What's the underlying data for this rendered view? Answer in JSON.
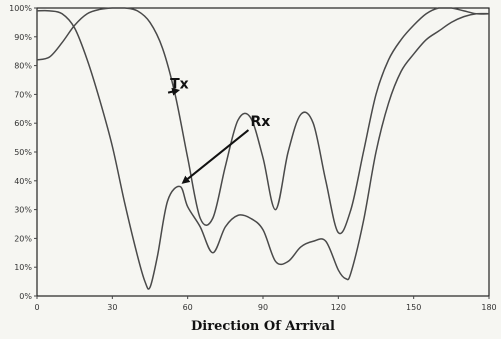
{
  "chart_data": {
    "type": "line",
    "title": "",
    "xlabel": "Direction Of Arrival",
    "ylabel": "",
    "xlim": [
      0,
      180
    ],
    "ylim": [
      0,
      100
    ],
    "grid": false,
    "legend": "none",
    "x_ticks": [
      "0",
      "30",
      "60",
      "90",
      "120",
      "150",
      "180"
    ],
    "y_ticks": [
      "0%",
      "10%",
      "20%",
      "30%",
      "40%",
      "50%",
      "60%",
      "70%",
      "80%",
      "90%",
      "100%"
    ],
    "series": [
      {
        "id": "tx",
        "color": "#4a4a4a",
        "x": [
          0,
          5,
          10,
          15,
          20,
          25,
          30,
          35,
          40,
          45,
          50,
          55,
          60,
          65,
          70,
          75,
          80,
          85,
          90,
          95,
          100,
          105,
          110,
          115,
          120,
          125,
          130,
          135,
          140,
          145,
          150,
          155,
          160,
          165,
          170,
          175,
          180
        ],
        "y": [
          82,
          83,
          88,
          94,
          98,
          99.5,
          100,
          100,
          99,
          95,
          86,
          70,
          48,
          27,
          27,
          45,
          61,
          62,
          48,
          30,
          50,
          63,
          60,
          40,
          22,
          30,
          50,
          70,
          82,
          89,
          94,
          98,
          100,
          100,
          99,
          98,
          98
        ]
      },
      {
        "id": "rx",
        "color": "#4a4a4a",
        "x": [
          0,
          5,
          10,
          15,
          20,
          25,
          30,
          35,
          40,
          43,
          45,
          48,
          52,
          57,
          60,
          65,
          70,
          75,
          80,
          85,
          90,
          95,
          100,
          105,
          110,
          115,
          120,
          123,
          125,
          130,
          135,
          140,
          145,
          150,
          155,
          160,
          165,
          170,
          175,
          180
        ],
        "y": [
          99,
          99,
          98,
          93,
          82,
          68,
          52,
          32,
          14,
          5,
          3,
          14,
          33,
          38,
          31,
          24,
          15,
          24,
          28,
          27,
          23,
          12,
          12,
          17,
          19,
          19,
          9,
          6,
          8,
          26,
          50,
          67,
          78,
          84,
          89,
          92,
          95,
          97,
          98,
          98
        ]
      }
    ],
    "annotations": [
      {
        "text": "Tx",
        "series": "tx",
        "x": 53,
        "y": 72
      },
      {
        "text": "Rx",
        "series": "rx",
        "x": 85,
        "y": 59
      }
    ]
  }
}
